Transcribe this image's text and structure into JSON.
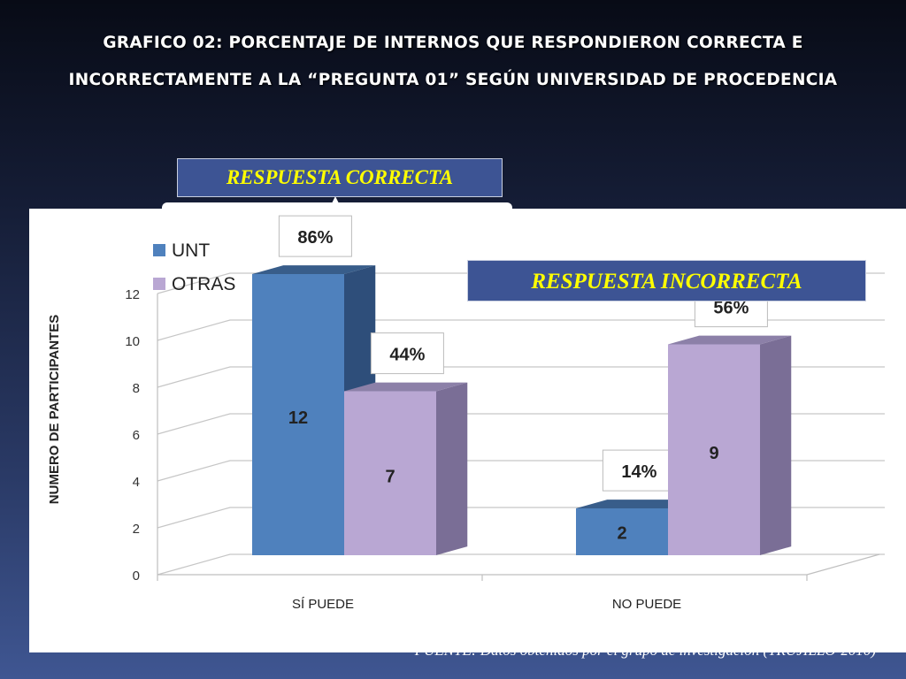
{
  "slide": {
    "title_line1": "GRAFICO 02:  PORCENTAJE DE INTERNOS QUE RESPONDIERON CORRECTA E",
    "title_line2": "INCORRECTAMENTE A LA “PREGUNTA 01” SEGÚN UNIVERSIDAD DE PROCEDENCIA",
    "callout_correct": "RESPUESTA CORRECTA",
    "callout_incorrect": "RESPUESTA INCORRECTA",
    "source_prefix": "*FUENTE: ",
    "source_text": "Datos obtenidos por el grupo de investigación  (TRUJILLO-2010)"
  },
  "colors": {
    "unt_front": "#4f81bd",
    "unt_side": "#2e4e7a",
    "unt_top": "#385d8a",
    "otras_front": "#b9a7d3",
    "otras_side": "#7a6e96",
    "otras_top": "#8c80a8",
    "callout_bg": "#3d5494",
    "callout_text": "#ffff00"
  },
  "chart_data": {
    "type": "bar",
    "title": "",
    "xlabel": "",
    "ylabel": "NUMERO DE PARTICIPANTES",
    "ylim": [
      0,
      12
    ],
    "yticks": [
      0,
      2,
      4,
      6,
      8,
      10,
      12
    ],
    "grid": true,
    "legend_position": "top-left",
    "categories": [
      "SÍ PUEDE",
      "NO PUEDE"
    ],
    "series": [
      {
        "name": "UNT",
        "values": [
          12,
          2
        ],
        "percent_labels": [
          "86%",
          "14%"
        ],
        "color": "#4f81bd"
      },
      {
        "name": "OTRAS",
        "values": [
          7,
          9
        ],
        "percent_labels": [
          "44%",
          "56%"
        ],
        "color": "#b9a7d3"
      }
    ]
  }
}
